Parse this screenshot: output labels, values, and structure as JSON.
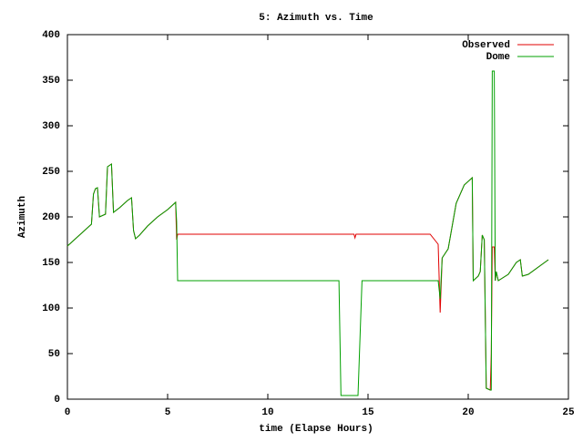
{
  "chart_data": {
    "type": "line",
    "title": "5: Azimuth vs. Time",
    "x_label": "time (Elapse Hours)",
    "y_label": "Azimuth",
    "xlim": [
      0,
      25
    ],
    "ylim": [
      0,
      400
    ],
    "xticks": [
      0,
      5,
      10,
      15,
      20,
      25
    ],
    "yticks": [
      0,
      50,
      100,
      150,
      200,
      250,
      300,
      350,
      400
    ],
    "legend": "top-right",
    "x": [
      0,
      0.5,
      1,
      1.2,
      1.3,
      1.4,
      1.5,
      1.6,
      1.9,
      2,
      2.2,
      2.3,
      2.6,
      3,
      3.2,
      3.3,
      3.4,
      3.6,
      4,
      4.5,
      5,
      5.4,
      5.45,
      5.5,
      13.55,
      13.65,
      14.3,
      14.35,
      14.4,
      14.5,
      14.7,
      18.1,
      18.5,
      18.6,
      18.7,
      19,
      19.4,
      19.8,
      20.2,
      20.25,
      20.5,
      20.6,
      20.7,
      20.8,
      20.9,
      21.1,
      21.15,
      21.2,
      21.3,
      21.35,
      21.4,
      21.5,
      22,
      22.4,
      22.6,
      22.7,
      23,
      24
    ],
    "series": [
      {
        "name": "Observed",
        "color": "#e00000",
        "values": [
          168,
          178,
          188,
          192,
          225,
          231,
          232,
          200,
          203,
          255,
          258,
          205,
          210,
          218,
          221,
          185,
          176,
          180,
          190,
          200,
          208,
          216,
          175,
          181,
          181,
          181,
          181,
          177,
          181,
          181,
          181,
          181,
          170,
          95,
          155,
          165,
          215,
          235,
          243,
          130,
          135,
          140,
          180,
          175,
          12,
          10,
          50,
          167,
          167,
          130,
          140,
          130,
          137,
          150,
          153,
          135,
          137,
          153
        ]
      },
      {
        "name": "Dome",
        "color": "#00a000",
        "values": [
          168,
          178,
          188,
          192,
          225,
          231,
          232,
          200,
          203,
          255,
          258,
          205,
          210,
          218,
          221,
          185,
          176,
          180,
          190,
          200,
          208,
          216,
          195,
          130,
          130,
          4,
          4,
          4,
          4,
          4,
          130,
          130,
          130,
          110,
          155,
          165,
          215,
          235,
          243,
          130,
          135,
          140,
          180,
          175,
          12,
          10,
          10,
          360,
          360,
          130,
          140,
          130,
          137,
          150,
          153,
          135,
          137,
          153
        ]
      }
    ]
  }
}
